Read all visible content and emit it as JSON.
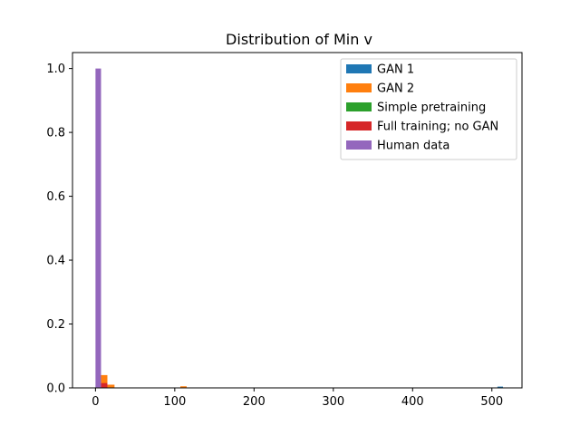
{
  "chart_data": {
    "type": "bar",
    "title": "Distribution of Min v",
    "xlabel": "",
    "ylabel": "",
    "xlim": [
      -29,
      538
    ],
    "ylim": [
      0,
      1.05
    ],
    "xticks": [
      0,
      100,
      200,
      300,
      400,
      500
    ],
    "yticks": [
      0.0,
      0.2,
      0.4,
      0.6,
      0.8,
      1.0
    ],
    "xtick_labels": [
      "0",
      "100",
      "200",
      "300",
      "400",
      "500"
    ],
    "ytick_labels": [
      "0.0",
      "0.2",
      "0.4",
      "0.6",
      "0.8",
      "1.0"
    ],
    "grid": false,
    "legend_position": "top-right",
    "series": [
      {
        "name": "GAN 1",
        "color": "#1f77b4",
        "bars": [
          {
            "x0": 507,
            "x1": 514,
            "value": 0.004
          }
        ]
      },
      {
        "name": "GAN 2",
        "color": "#ff7f0e",
        "bars": [
          {
            "x0": 7,
            "x1": 15,
            "value": 0.04
          },
          {
            "x0": 15,
            "x1": 24,
            "value": 0.01
          },
          {
            "x0": 107,
            "x1": 115,
            "value": 0.005
          }
        ]
      },
      {
        "name": "Simple pretraining",
        "color": "#2ca02c",
        "bars": [
          {
            "x0": 0,
            "x1": 7,
            "value": 0.003
          }
        ]
      },
      {
        "name": "Full training; no GAN",
        "color": "#d62728",
        "bars": [
          {
            "x0": 7,
            "x1": 15,
            "value": 0.015
          }
        ]
      },
      {
        "name": "Human data",
        "color": "#9467bd",
        "bars": [
          {
            "x0": 0,
            "x1": 7,
            "value": 1.0
          }
        ]
      }
    ]
  }
}
